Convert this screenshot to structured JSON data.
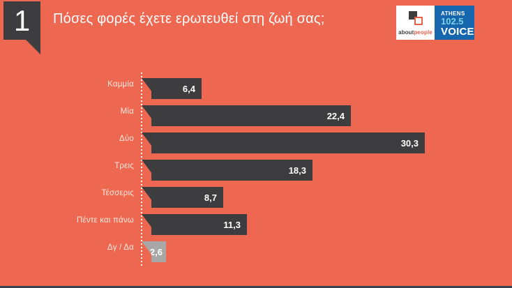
{
  "slide": {
    "number": "1",
    "title": "Πόσες φορές έχετε ερωτευθεί στη ζωή σας;"
  },
  "logos": {
    "aboutpeople": {
      "about": "about",
      "people": "people"
    },
    "athens_voice": {
      "line1": "ATHENS",
      "line2": "102.5",
      "line3": "VOICE"
    }
  },
  "colors": {
    "background": "#ee6750",
    "bar_dark": "#3d3d40",
    "bar_gray": "#a7a7a7",
    "axis_line": "#ffffff",
    "label_text": "#fceadf",
    "value_text": "#ffffff",
    "logo_blue": "#1566ad",
    "logo_lightblue": "#7fd1e5",
    "logo_orange": "#e8604a",
    "bottom_strip": "#3a4250"
  },
  "chart_data": {
    "type": "bar",
    "orientation": "horizontal",
    "title": "Πόσες φορές έχετε ερωτευθεί στη ζωή σας;",
    "categories": [
      "Καμμία",
      "Μία",
      "Δύο",
      "Τρεις",
      "Τέσσερις",
      "Πέντε και πάνω",
      "Δγ / Δα"
    ],
    "values": [
      6.4,
      22.4,
      30.3,
      18.3,
      8.7,
      11.3,
      2.6
    ],
    "value_labels": [
      "6,4",
      "22,4",
      "30,3",
      "18,3",
      "8,7",
      "11,3",
      "2,6"
    ],
    "bar_colors": [
      "#3d3d40",
      "#3d3d40",
      "#3d3d40",
      "#3d3d40",
      "#3d3d40",
      "#3d3d40",
      "#a7a7a7"
    ],
    "xlim": [
      0,
      30.3
    ],
    "axis": "white dotted vertical baseline",
    "grid": false,
    "legend": false,
    "value_label_position": "inside-right"
  }
}
